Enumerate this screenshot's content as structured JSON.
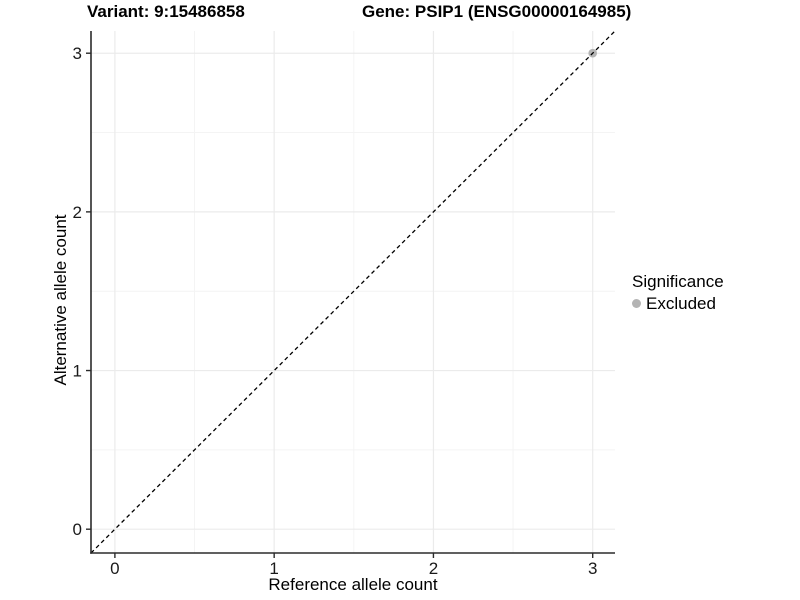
{
  "chart_data": {
    "type": "scatter",
    "titles": {
      "left": "Variant: 9:15486858",
      "right": "Gene: PSIP1 (ENSG00000164985)"
    },
    "xlabel": "Reference allele count",
    "ylabel": "Alternative allele count",
    "xlim": [
      -0.15,
      3.14
    ],
    "ylim": [
      -0.15,
      3.14
    ],
    "x_ticks": [
      0,
      1,
      2,
      3
    ],
    "y_ticks": [
      0,
      1,
      2,
      3
    ],
    "x_tick_labels": [
      "0",
      "1",
      "2",
      "3"
    ],
    "y_tick_labels": [
      "0",
      "1",
      "2",
      "3"
    ],
    "minor_ticks": [
      0.5,
      1.5,
      2.5
    ],
    "grid": "major and minor gridlines on white panel",
    "identity_line": {
      "equation": "y = x",
      "style": "dashed",
      "color": "#000000"
    },
    "series": [
      {
        "name": "Excluded",
        "color": "#B4B4B4",
        "points": [
          {
            "x": 3,
            "y": 3
          }
        ]
      }
    ],
    "legend": {
      "title": "Significance",
      "position": "right",
      "entries": [
        {
          "label": "Excluded",
          "color": "#B4B4B4"
        }
      ]
    }
  },
  "colors": {
    "background": "#FFFFFF",
    "grid_major": "#EBEBEB",
    "grid_minor": "#F4F4F4",
    "axis_line": "#2B2B2B",
    "tick_mark": "#2B2B2B",
    "tick_text": "#1A1A1A",
    "title_text": "#000000",
    "point": "#B4B4B4"
  }
}
